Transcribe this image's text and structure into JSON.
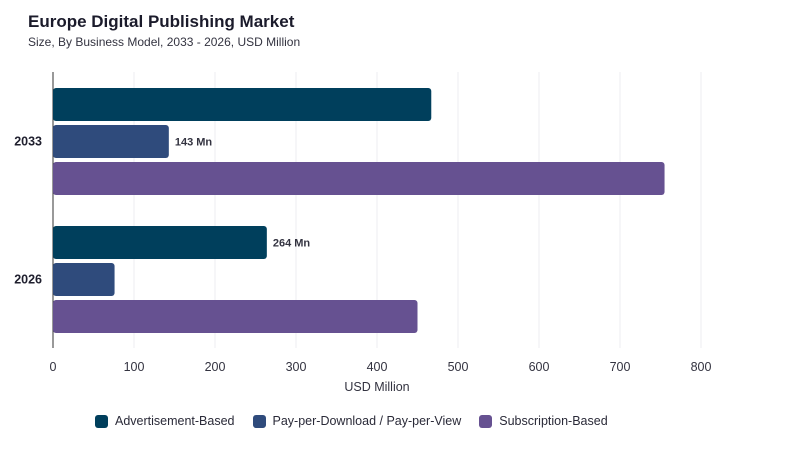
{
  "header": {
    "title": "Europe Digital Publishing Market",
    "subtitle": "Size, By Business Model, 2033 - 2026, USD Million"
  },
  "chart_data": {
    "type": "bar",
    "orientation": "horizontal",
    "categories": [
      "2033",
      "2026"
    ],
    "series": [
      {
        "name": "Advertisement-Based",
        "color": "#003f5c",
        "values": [
          467,
          264
        ],
        "labels": [
          null,
          "264 Mn"
        ]
      },
      {
        "name": "Pay-per-Download / Pay-per-View",
        "color": "#2f4b7c",
        "values": [
          143,
          76
        ],
        "labels": [
          "143 Mn",
          null
        ]
      },
      {
        "name": "Subscription-Based",
        "color": "#665191",
        "values": [
          755,
          450
        ],
        "labels": [
          null,
          null
        ]
      }
    ],
    "xlabel": "USD Million",
    "xlim": [
      0,
      800
    ],
    "xticks": [
      0,
      100,
      200,
      300,
      400,
      500,
      600,
      700,
      800
    ],
    "grid": true,
    "legend_position": "bottom"
  }
}
